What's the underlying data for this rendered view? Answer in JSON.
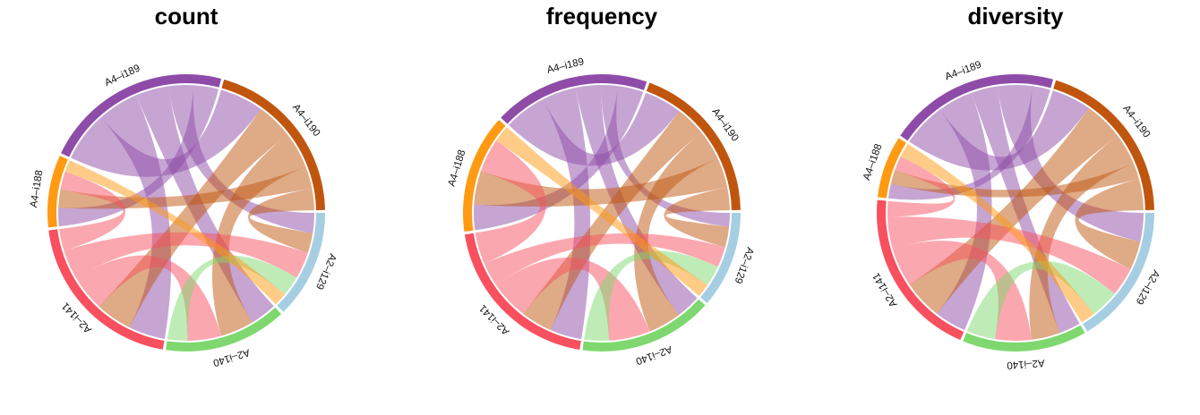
{
  "chart_data": [
    {
      "type": "chord",
      "title": "count",
      "sectors": [
        {
          "name": "A2–i129",
          "value": 15,
          "color": "#a6cee3"
        },
        {
          "name": "A2–i140",
          "value": 17,
          "color": "#7fd86f"
        },
        {
          "name": "A2–i141",
          "value": 24,
          "color": "#f8505f"
        },
        {
          "name": "A4–i188",
          "value": 10,
          "color": "#ff9a12"
        },
        {
          "name": "A4–i189",
          "value": 26,
          "color": "#8e4ca8"
        },
        {
          "name": "A4–i190",
          "value": 24,
          "color": "#c0560e"
        }
      ],
      "links": [
        {
          "from": "A4–i189",
          "to": "A4–i190",
          "value": 6
        },
        {
          "from": "A4–i189",
          "to": "A2–i141",
          "value": 5
        },
        {
          "from": "A4–i189",
          "to": "A2–i140",
          "value": 4
        },
        {
          "from": "A4–i189",
          "to": "A2–i129",
          "value": 3
        },
        {
          "from": "A4–i189",
          "to": "A4–i188",
          "value": 3
        },
        {
          "from": "A4–i190",
          "to": "A2–i141",
          "value": 5
        },
        {
          "from": "A4–i190",
          "to": "A2–i140",
          "value": 5
        },
        {
          "from": "A4–i190",
          "to": "A4–i188",
          "value": 3
        },
        {
          "from": "A4–i190",
          "to": "A2–i129",
          "value": 3
        },
        {
          "from": "A2–i141",
          "to": "A2–i140",
          "value": 5
        },
        {
          "from": "A2–i141",
          "to": "A2–i129",
          "value": 4
        },
        {
          "from": "A2–i141",
          "to": "A4–i188",
          "value": 3
        },
        {
          "from": "A2–i140",
          "to": "A2–i129",
          "value": 3
        },
        {
          "from": "A4–i188",
          "to": "A2–i129",
          "value": 2
        }
      ]
    },
    {
      "type": "chord",
      "title": "frequency",
      "sectors": [
        {
          "name": "A2–i129",
          "value": 13,
          "color": "#a6cee3"
        },
        {
          "name": "A2–i140",
          "value": 18,
          "color": "#7fd86f"
        },
        {
          "name": "A2–i141",
          "value": 23,
          "color": "#f8505f"
        },
        {
          "name": "A4–i188",
          "value": 16,
          "color": "#ff9a12"
        },
        {
          "name": "A4–i189",
          "value": 21,
          "color": "#8e4ca8"
        },
        {
          "name": "A4–i190",
          "value": 22,
          "color": "#c0560e"
        }
      ],
      "links": [
        {
          "from": "A4–i189",
          "to": "A4–i190",
          "value": 5
        },
        {
          "from": "A4–i189",
          "to": "A2–i141",
          "value": 4
        },
        {
          "from": "A4–i189",
          "to": "A2–i140",
          "value": 3
        },
        {
          "from": "A4–i189",
          "to": "A2–i129",
          "value": 2
        },
        {
          "from": "A4–i189",
          "to": "A4–i188",
          "value": 3
        },
        {
          "from": "A4–i190",
          "to": "A2–i141",
          "value": 4
        },
        {
          "from": "A4–i190",
          "to": "A2–i140",
          "value": 4
        },
        {
          "from": "A4–i190",
          "to": "A4–i188",
          "value": 4
        },
        {
          "from": "A4–i190",
          "to": "A2–i129",
          "value": 3
        },
        {
          "from": "A2–i141",
          "to": "A2–i140",
          "value": 5
        },
        {
          "from": "A2–i141",
          "to": "A2–i129",
          "value": 3
        },
        {
          "from": "A2–i141",
          "to": "A4–i188",
          "value": 4
        },
        {
          "from": "A2–i140",
          "to": "A2–i129",
          "value": 3
        },
        {
          "from": "A4–i188",
          "to": "A2–i129",
          "value": 2
        }
      ]
    },
    {
      "type": "chord",
      "title": "diversity",
      "sectors": [
        {
          "name": "A2–i129",
          "value": 18,
          "color": "#a6cee3"
        },
        {
          "name": "A2–i140",
          "value": 16,
          "color": "#7fd86f"
        },
        {
          "name": "A2–i141",
          "value": 22,
          "color": "#f8505f"
        },
        {
          "name": "A4–i188",
          "value": 8,
          "color": "#ff9a12"
        },
        {
          "name": "A4–i189",
          "value": 22,
          "color": "#8e4ca8"
        },
        {
          "name": "A4–i190",
          "value": 22,
          "color": "#c0560e"
        }
      ],
      "links": [
        {
          "from": "A4–i189",
          "to": "A4–i190",
          "value": 5
        },
        {
          "from": "A4–i189",
          "to": "A2–i141",
          "value": 4
        },
        {
          "from": "A4–i189",
          "to": "A2–i140",
          "value": 3
        },
        {
          "from": "A4–i189",
          "to": "A2–i129",
          "value": 4
        },
        {
          "from": "A4–i189",
          "to": "A4–i188",
          "value": 2
        },
        {
          "from": "A4–i190",
          "to": "A2–i141",
          "value": 5
        },
        {
          "from": "A4–i190",
          "to": "A2–i140",
          "value": 4
        },
        {
          "from": "A4–i190",
          "to": "A4–i188",
          "value": 2
        },
        {
          "from": "A4–i190",
          "to": "A2–i129",
          "value": 4
        },
        {
          "from": "A2–i141",
          "to": "A2–i140",
          "value": 5
        },
        {
          "from": "A2–i141",
          "to": "A2–i129",
          "value": 4
        },
        {
          "from": "A2–i141",
          "to": "A4–i188",
          "value": 2
        },
        {
          "from": "A2–i140",
          "to": "A2–i129",
          "value": 4
        },
        {
          "from": "A4–i188",
          "to": "A2–i129",
          "value": 2
        }
      ]
    }
  ]
}
